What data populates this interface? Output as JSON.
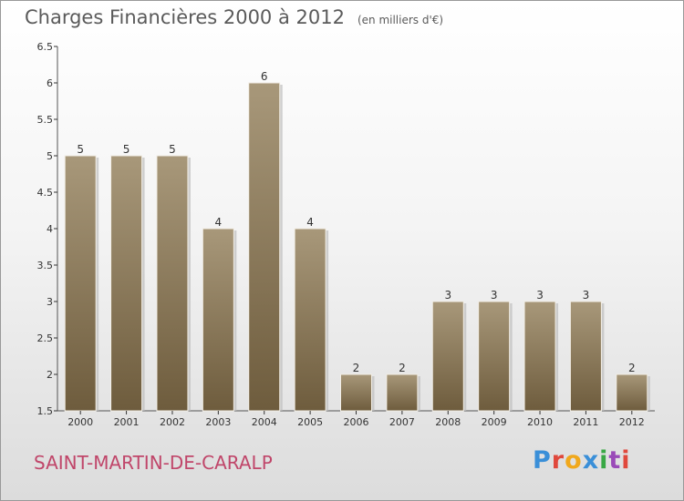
{
  "header": {
    "title": "Charges Financières 2000 à 2012",
    "unit": "(en milliers d'€)"
  },
  "footer": {
    "place": "SAINT-MARTIN-DE-CARALP",
    "logo_text": "Proxiti"
  },
  "colors": {
    "bar_top": "#a8987a",
    "bar_bottom": "#6e5c3d",
    "axis": "#555555",
    "grid_tick": "#333333",
    "title": "#5a5a5a",
    "place": "#c0466a",
    "logo": [
      "#3a8fd8",
      "#e0483c",
      "#f0a81c",
      "#3a8fd8",
      "#39a845",
      "#9a4ab8",
      "#e0483c"
    ]
  },
  "chart_data": {
    "type": "bar",
    "title": "Charges Financières 2000 à 2012",
    "subtitle": "(en milliers d'€)",
    "categories": [
      "2000",
      "2001",
      "2002",
      "2003",
      "2004",
      "2005",
      "2006",
      "2007",
      "2008",
      "2009",
      "2010",
      "2011",
      "2012"
    ],
    "values": [
      5,
      5,
      5,
      4,
      6,
      4,
      2,
      2,
      3,
      3,
      3,
      3,
      2
    ],
    "ylim": [
      1.5,
      6.5
    ],
    "yticks": [
      "1.5",
      "2",
      "2.5",
      "3",
      "3.5",
      "4",
      "4.5",
      "5",
      "5.5",
      "6",
      "6.5"
    ],
    "xlabel": "",
    "ylabel": "",
    "grid": false,
    "legend": "none"
  }
}
